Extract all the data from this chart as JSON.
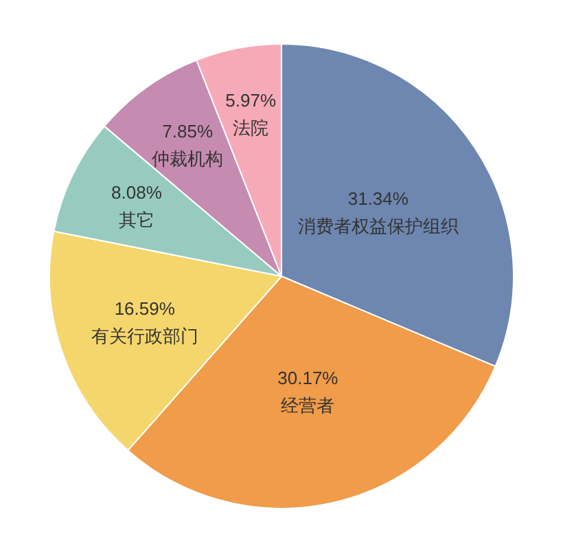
{
  "chart_data": {
    "type": "pie",
    "categories": [
      "消费者权益保护组织",
      "经营者",
      "有关行政部门",
      "其它",
      "仲裁机构",
      "法院"
    ],
    "values": [
      31.34,
      30.17,
      16.59,
      8.08,
      7.85,
      5.97
    ],
    "value_labels": [
      "31.34%",
      "30.17%",
      "16.59%",
      "8.08%",
      "7.85%",
      "5.97%"
    ],
    "colors": [
      "#6d87b0",
      "#f09c4a",
      "#f5d66c",
      "#97cbc0",
      "#c68bb0",
      "#f6aab8"
    ],
    "legend": false
  }
}
